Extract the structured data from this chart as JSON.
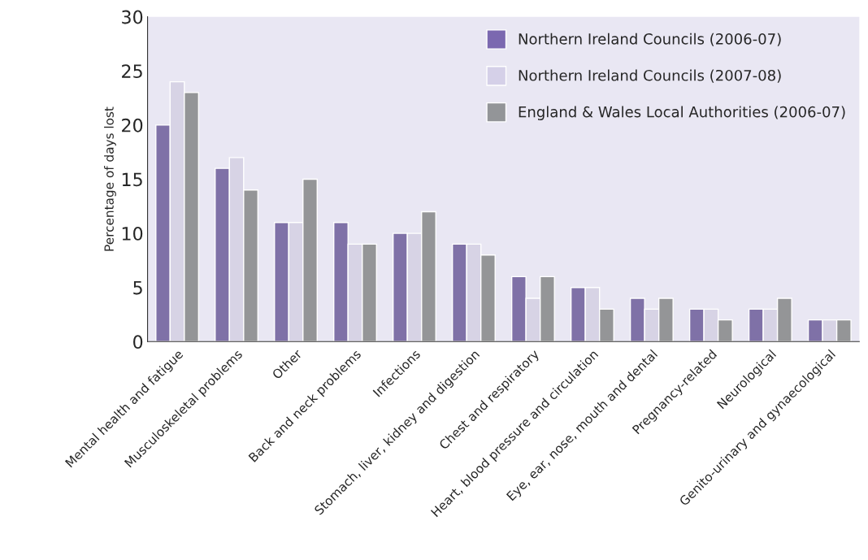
{
  "chart_data": {
    "type": "bar",
    "ylabel": "Percentage of days lost",
    "categories": [
      "Mental health and fatigue",
      "Musculoskeletal problems",
      "Other",
      "Back and neck problems",
      "Infections",
      "Stomach, liver, kidney and digestion",
      "Chest and respiratory",
      "Heart, blood pressure and circulation",
      "Eye, ear, nose, mouth and dental",
      "Pregnancy-related",
      "Neurological",
      "Genito-urinary and gynaecological"
    ],
    "series": [
      {
        "name": "Northern Ireland Councils (2006-07)",
        "color": "#7b68b0",
        "values": [
          20,
          16,
          11,
          11,
          10,
          9,
          6,
          5,
          4,
          3,
          3,
          2
        ]
      },
      {
        "name": "Northern Ireland Councils (2007-08)",
        "color": "#d5d0e8",
        "values": [
          24,
          17,
          11,
          9,
          10,
          9,
          4,
          5,
          3,
          3,
          3,
          2
        ]
      },
      {
        "name": "England & Wales Local Authorities (2006-07)",
        "color": "#939598",
        "values": [
          23,
          14,
          15,
          9,
          12,
          8,
          6,
          3,
          4,
          2,
          4,
          2
        ]
      }
    ],
    "ylim": [
      0,
      30
    ],
    "yticks": [
      0,
      5,
      10,
      15,
      20,
      25,
      30
    ],
    "grid": false,
    "legend": "top right"
  }
}
